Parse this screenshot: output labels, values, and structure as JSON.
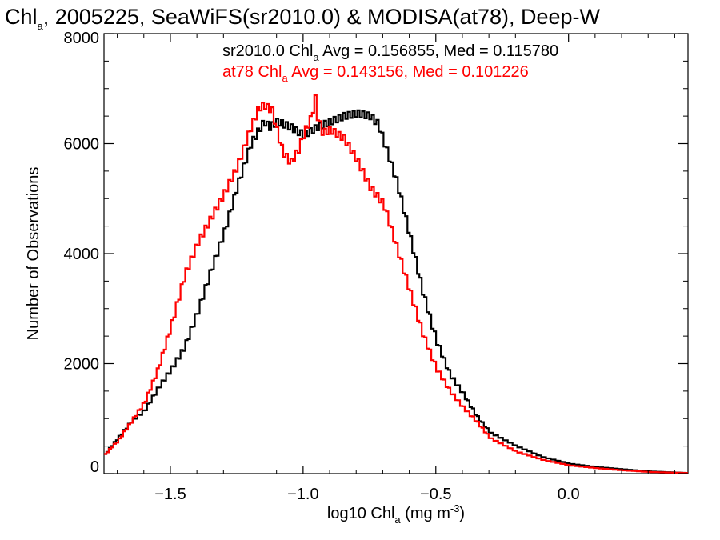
{
  "chart_data": {
    "type": "line",
    "title": {
      "pre": "Chl",
      "sub": "a",
      "post": ", 2005225, SeaWiFS(sr2010.0) & MODISA(at78), Deep-W"
    },
    "xlabel": {
      "pre": "log10 Chl",
      "sub": "a",
      "mid": " (mg m",
      "sup": "-3",
      "post": ")"
    },
    "ylabel": "Number of Observations",
    "xlim": [
      -1.75,
      0.45
    ],
    "ylim": [
      0,
      8000
    ],
    "xticks": [
      -1.5,
      -1.0,
      -0.5,
      0.0
    ],
    "xtick_labels": [
      "−1.5",
      "−1.0",
      "−0.5",
      "0.0"
    ],
    "yticks": [
      0,
      2000,
      4000,
      6000,
      8000
    ],
    "ytick_labels": [
      "0",
      "2000",
      "4000",
      "6000",
      "8000"
    ],
    "grid": false,
    "legend": "top-center",
    "annotations": [
      {
        "series": "sr2010.0",
        "pre": "sr2010.0 Chl",
        "sub": "a",
        "post": " Avg = 0.156855, Med = 0.115780",
        "color": "#000000"
      },
      {
        "series": "at78",
        "pre": "at78 Chl",
        "sub": "a",
        "post": " Avg = 0.143156, Med = 0.101226",
        "color": "#ff0000"
      }
    ],
    "series": [
      {
        "name": "sr2010.0",
        "color": "#000000",
        "x": [
          -1.75,
          -1.7,
          -1.65,
          -1.6,
          -1.55,
          -1.5,
          -1.45,
          -1.4,
          -1.35,
          -1.3,
          -1.25,
          -1.2,
          -1.17,
          -1.15,
          -1.13,
          -1.1,
          -1.05,
          -1.0,
          -0.95,
          -0.9,
          -0.85,
          -0.8,
          -0.75,
          -0.72,
          -0.7,
          -0.65,
          -0.6,
          -0.55,
          -0.5,
          -0.45,
          -0.4,
          -0.35,
          -0.3,
          -0.2,
          -0.1,
          0.0,
          0.1,
          0.2,
          0.3,
          0.45
        ],
        "values": [
          350,
          650,
          950,
          1150,
          1550,
          1900,
          2300,
          2950,
          3700,
          4400,
          5250,
          6000,
          6250,
          6400,
          6300,
          6400,
          6300,
          6150,
          6300,
          6400,
          6500,
          6550,
          6500,
          6350,
          6050,
          5300,
          4300,
          3250,
          2400,
          1800,
          1450,
          1050,
          750,
          500,
          300,
          180,
          120,
          80,
          40,
          10
        ]
      },
      {
        "name": "at78",
        "color": "#ff0000",
        "x": [
          -1.75,
          -1.7,
          -1.65,
          -1.6,
          -1.55,
          -1.5,
          -1.45,
          -1.4,
          -1.35,
          -1.3,
          -1.25,
          -1.2,
          -1.17,
          -1.15,
          -1.12,
          -1.1,
          -1.08,
          -1.05,
          -1.02,
          -1.0,
          -0.97,
          -0.96,
          -0.95,
          -0.93,
          -0.9,
          -0.85,
          -0.8,
          -0.75,
          -0.7,
          -0.65,
          -0.6,
          -0.55,
          -0.5,
          -0.45,
          -0.4,
          -0.35,
          -0.3,
          -0.2,
          -0.1,
          0.0,
          0.1,
          0.2,
          0.3,
          0.45
        ],
        "values": [
          350,
          600,
          950,
          1300,
          1900,
          2700,
          3600,
          4200,
          4650,
          5100,
          5600,
          6300,
          6650,
          6700,
          6600,
          6200,
          5850,
          5650,
          5900,
          6200,
          6500,
          6900,
          6500,
          6200,
          6250,
          6100,
          5700,
          5200,
          4900,
          4100,
          3300,
          2500,
          1900,
          1500,
          1200,
          950,
          650,
          400,
          250,
          150,
          100,
          60,
          30,
          10
        ]
      }
    ]
  }
}
